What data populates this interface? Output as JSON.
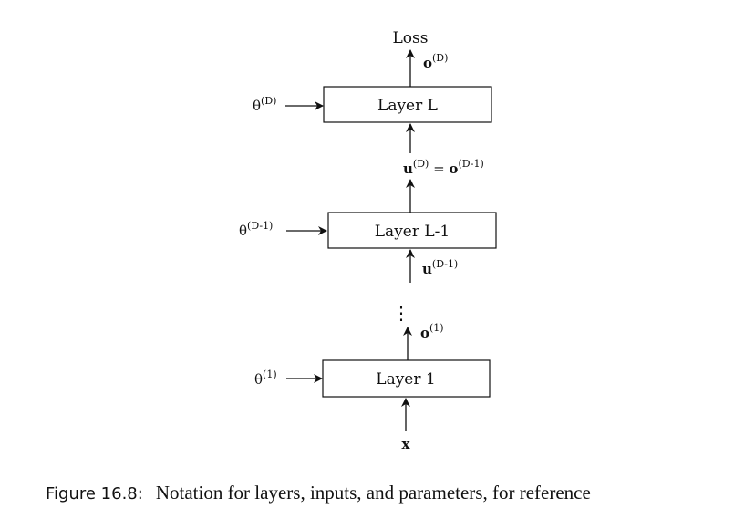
{
  "diagram": {
    "loss_label": "Loss",
    "layers": {
      "top": "Layer L",
      "middle": "Layer L-1",
      "bottom": "Layer 1"
    },
    "params": {
      "top": {
        "base": "θ",
        "sup": "(D)"
      },
      "middle": {
        "base": "θ",
        "sup": "(D-1)"
      },
      "bottom": {
        "base": "θ",
        "sup": "(1)"
      }
    },
    "outputs": {
      "top": {
        "base": "o",
        "sup": "(D)"
      },
      "bottom": {
        "base": "o",
        "sup": "(1)"
      }
    },
    "inputs": {
      "top_eq": {
        "lhs": "u",
        "lhs_sup": "(D)",
        "eq": " = ",
        "rhs": "o",
        "rhs_sup": "(D-1)"
      },
      "middle": {
        "base": "u",
        "sup": "(D-1)"
      },
      "bottom": "x"
    },
    "ellipsis": "⋮"
  },
  "caption": {
    "label": "Figure 16.8:",
    "text": "Notation for layers, inputs, and parameters, for reference"
  }
}
